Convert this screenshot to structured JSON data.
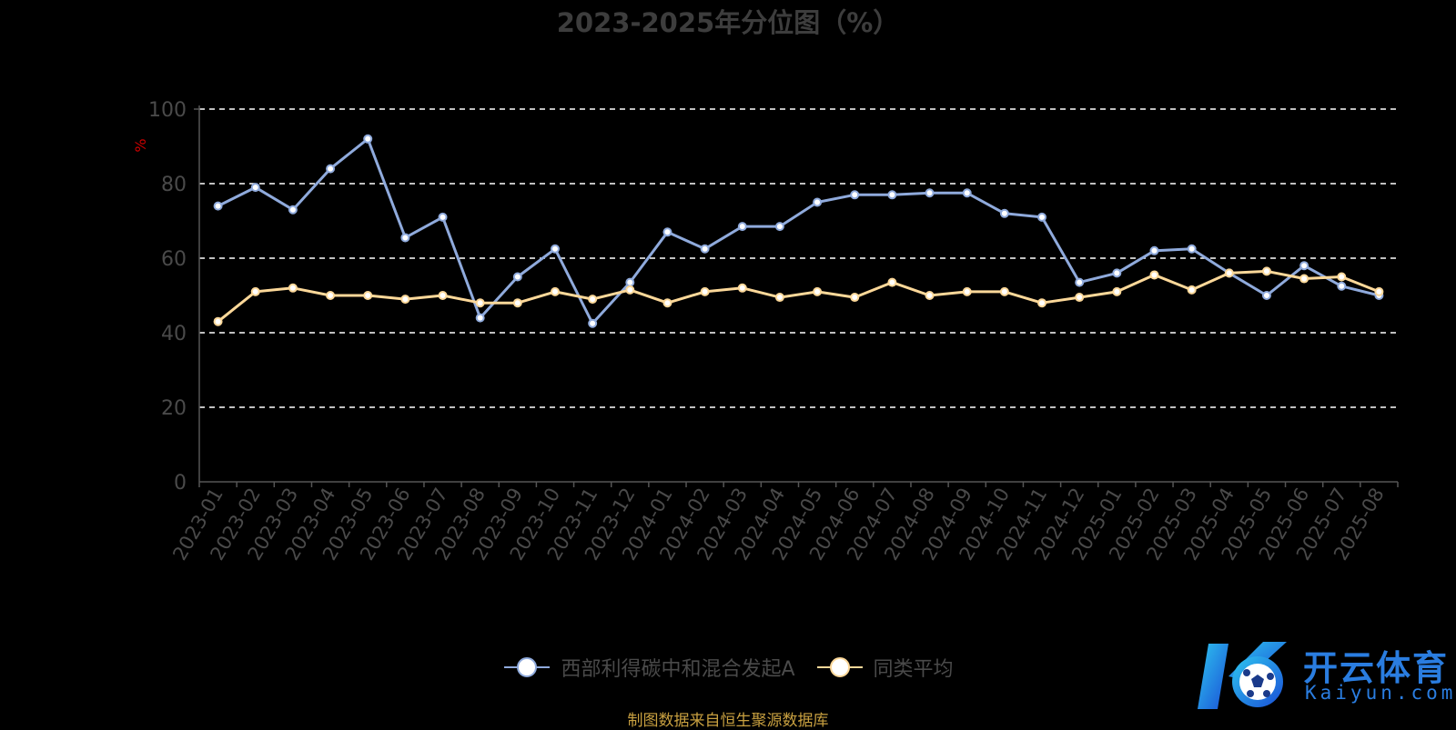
{
  "chart_data": {
    "type": "line",
    "title": "2023-2025年分位图（%）",
    "ylabel": "%",
    "ylim": [
      0,
      100
    ],
    "yticks": [
      "0",
      "20",
      "40",
      "60",
      "80",
      "100"
    ],
    "grid": true,
    "legend_position": "bottom",
    "categories": [
      "2023-01",
      "2023-02",
      "2023-03",
      "2023-04",
      "2023-05",
      "2023-06",
      "2023-07",
      "2023-08",
      "2023-09",
      "2023-10",
      "2023-11",
      "2023-12",
      "2024-01",
      "2024-02",
      "2024-03",
      "2024-04",
      "2024-05",
      "2024-06",
      "2024-07",
      "2024-08",
      "2024-09",
      "2024-10",
      "2024-11",
      "2024-12",
      "2025-01",
      "2025-02",
      "2025-03",
      "2025-04",
      "2025-05",
      "2025-06",
      "2025-07",
      "2025-08"
    ],
    "series": [
      {
        "name": "西部利得碳中和混合发起A",
        "color": "#8faadc",
        "values": [
          74,
          79,
          73,
          84,
          92,
          65.5,
          71,
          44,
          55,
          62.5,
          42.5,
          53.5,
          67,
          62.5,
          68.5,
          68.5,
          75,
          77,
          77,
          77.5,
          77.5,
          72,
          71,
          53.5,
          56,
          62,
          62.5,
          56,
          50,
          58,
          52.5,
          50
        ]
      },
      {
        "name": "同类平均",
        "color": "#fcd899",
        "values": [
          43,
          51,
          52,
          50,
          50,
          49,
          50,
          48,
          48,
          51,
          49,
          51.5,
          48,
          51,
          52,
          49.5,
          51,
          49.5,
          53.5,
          50,
          51,
          51,
          48,
          49.5,
          51,
          55.5,
          51.5,
          56,
          56.5,
          54.5,
          55,
          51
        ]
      }
    ]
  },
  "source_note": "制图数据来自恒生聚源数据库",
  "logo": {
    "cn": "开云体育",
    "en": "Kaiyun.com"
  }
}
